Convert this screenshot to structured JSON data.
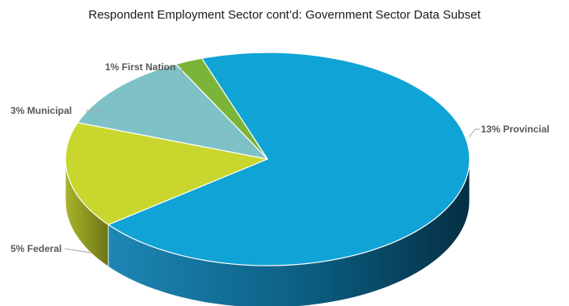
{
  "chart_data": {
    "type": "pie",
    "title": "Respondent Employment Sector cont’d: Government Sector Data Subset",
    "three_d": true,
    "slices": [
      {
        "key": "provincial",
        "label": "13% Provincial",
        "value": 13,
        "color": "#10a3d6",
        "side_color": "#0a5878"
      },
      {
        "key": "federal",
        "label": "5% Federal",
        "value": 5,
        "color": "#c9d62d",
        "side_color": "#8f9a1d"
      },
      {
        "key": "municipal",
        "label": "3% Municipal",
        "value": 3,
        "color": "#7ec1c6",
        "side_color": "#5a8f93"
      },
      {
        "key": "first-nation",
        "label": "1% First Nation",
        "value": 1,
        "color": "#7ab53a",
        "side_color": "#537d25"
      }
    ]
  }
}
